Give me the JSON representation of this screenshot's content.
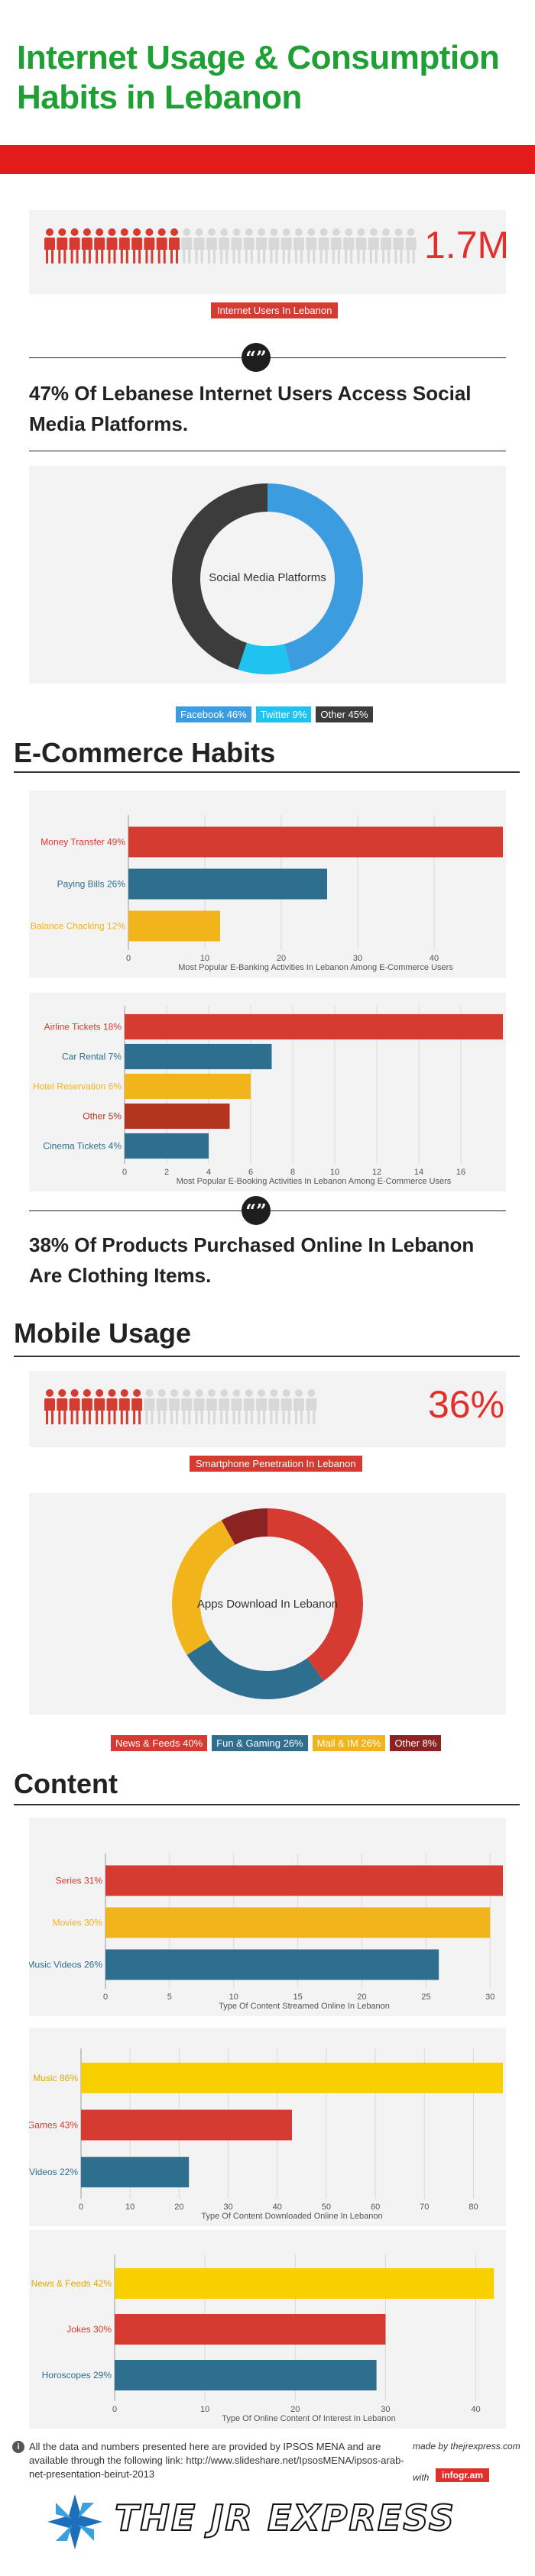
{
  "header": {
    "title": "Internet Usage & Consumption Habits in Lebanon"
  },
  "internet_users": {
    "value": "1.7M",
    "label": "Internet Users In Lebanon",
    "filled": 11,
    "total": 30
  },
  "quote_icon": "“”",
  "social": {
    "statement": "47% Of Lebanese Internet Users Access Social Media Platforms.",
    "center": "Social Media Platforms",
    "legend": [
      {
        "label": "Facebook 46%",
        "color": "#3b9de0"
      },
      {
        "label": "Twitter 9%",
        "color": "#1fc3f0"
      },
      {
        "label": "Other 45%",
        "color": "#3c3c3c"
      }
    ]
  },
  "sections": {
    "ecommerce": "E-Commerce Habits",
    "mobile": "Mobile Usage",
    "content": "Content"
  },
  "clothing": {
    "statement": "38% Of Products Purchased Online In Lebanon Are Clothing Items."
  },
  "mobile": {
    "value": "36%",
    "label": "Smartphone Penetration In Lebanon",
    "filled": 8,
    "total": 22,
    "center": "Apps Download In Lebanon",
    "legend": [
      {
        "label": "News & Feeds 40%",
        "color": "#d63b32"
      },
      {
        "label": "Fun & Gaming 26%",
        "color": "#2e6e8e"
      },
      {
        "label": "Mail & IM 26%",
        "color": "#f2b41b"
      },
      {
        "label": "Other 8%",
        "color": "#8b2323"
      }
    ]
  },
  "footer": {
    "note": "All the data and numbers presented here are provided by IPSOS MENA and are available through the following link: http://www.slideshare.net/IpsosMENA/ipsos-arab-net-presentation-beirut-2013",
    "made_by": "made by thejrexpress.com",
    "with": "with",
    "infogram": "infogr.am",
    "logo_text": "THE JR EXPRESS"
  },
  "colors": {
    "red": "#d63b32",
    "teal": "#2e6e8e",
    "yellow": "#f2b41b",
    "darkred": "#b3341f",
    "gold": "#f8d000"
  },
  "chart_data": [
    {
      "type": "pie",
      "id": "social",
      "categories": [
        "Facebook",
        "Twitter",
        "Other"
      ],
      "values": [
        46,
        9,
        45
      ],
      "colors": [
        "#3b9de0",
        "#1fc3f0",
        "#3c3c3c"
      ],
      "title": "Social Media Platforms"
    },
    {
      "type": "bar",
      "id": "ebanking",
      "categories": [
        "Money Transfer 49%",
        "Paying Bills 26%",
        "Balance Chacking 12%"
      ],
      "values": [
        49,
        26,
        12
      ],
      "colors": [
        "#d63b32",
        "#2e6e8e",
        "#f2b41b"
      ],
      "xlabel": "Most Popular E-Banking Activities In Lebanon Among E-Commerce Users",
      "xticks": [
        0,
        10,
        20,
        30,
        40
      ],
      "xlim": [
        0,
        49
      ]
    },
    {
      "type": "bar",
      "id": "ebooking",
      "categories": [
        "Airline Tickets 18%",
        "Car Rental 7%",
        "Hotel Reservation 6%",
        "Other 5%",
        "Cinema Tickets 4%"
      ],
      "values": [
        18,
        7,
        6,
        5,
        4
      ],
      "colors": [
        "#d63b32",
        "#2e6e8e",
        "#f2b41b",
        "#b3341f",
        "#2e6e8e"
      ],
      "xlabel": "Most Popular E-Booking Activities In Lebanon Among E-Commerce Users",
      "xticks": [
        0,
        2,
        4,
        6,
        8,
        10,
        12,
        14,
        16
      ],
      "xlim": [
        0,
        18
      ]
    },
    {
      "type": "pie",
      "id": "apps",
      "categories": [
        "News & Feeds",
        "Fun & Gaming",
        "Mail & IM",
        "Other"
      ],
      "values": [
        40,
        26,
        26,
        8
      ],
      "colors": [
        "#d63b32",
        "#2e6e8e",
        "#f2b41b",
        "#8b2323"
      ],
      "title": "Apps Download In Lebanon"
    },
    {
      "type": "bar",
      "id": "streamed",
      "categories": [
        "Series 31%",
        "Movies 30%",
        "Music Videos 26%"
      ],
      "values": [
        31,
        30,
        26
      ],
      "colors": [
        "#d63b32",
        "#f2b41b",
        "#2e6e8e"
      ],
      "xlabel": "Type Of Content Streamed Online In Lebanon",
      "xticks": [
        0,
        5,
        10,
        15,
        20,
        25,
        30
      ],
      "xlim": [
        0,
        31
      ]
    },
    {
      "type": "bar",
      "id": "downloaded",
      "categories": [
        "Music 86%",
        "Games 43%",
        "Videos 22%"
      ],
      "values": [
        86,
        43,
        22
      ],
      "colors": [
        "#f8d000",
        "#d63b32",
        "#2e6e8e"
      ],
      "xlabel": "Type Of Content Downloaded Online In Lebanon",
      "xticks": [
        0,
        10,
        20,
        30,
        40,
        50,
        60,
        70,
        80
      ],
      "xlim": [
        0,
        86
      ]
    },
    {
      "type": "bar",
      "id": "interest",
      "categories": [
        "News & Feeds 42%",
        "Jokes 30%",
        "Horoscopes 29%"
      ],
      "values": [
        42,
        30,
        29
      ],
      "colors": [
        "#f8d000",
        "#d63b32",
        "#2e6e8e"
      ],
      "xlabel": "Type Of Online Content Of Interest In Lebanon",
      "xticks": [
        0,
        10,
        20,
        30,
        40
      ],
      "xlim": [
        0,
        43
      ]
    }
  ]
}
